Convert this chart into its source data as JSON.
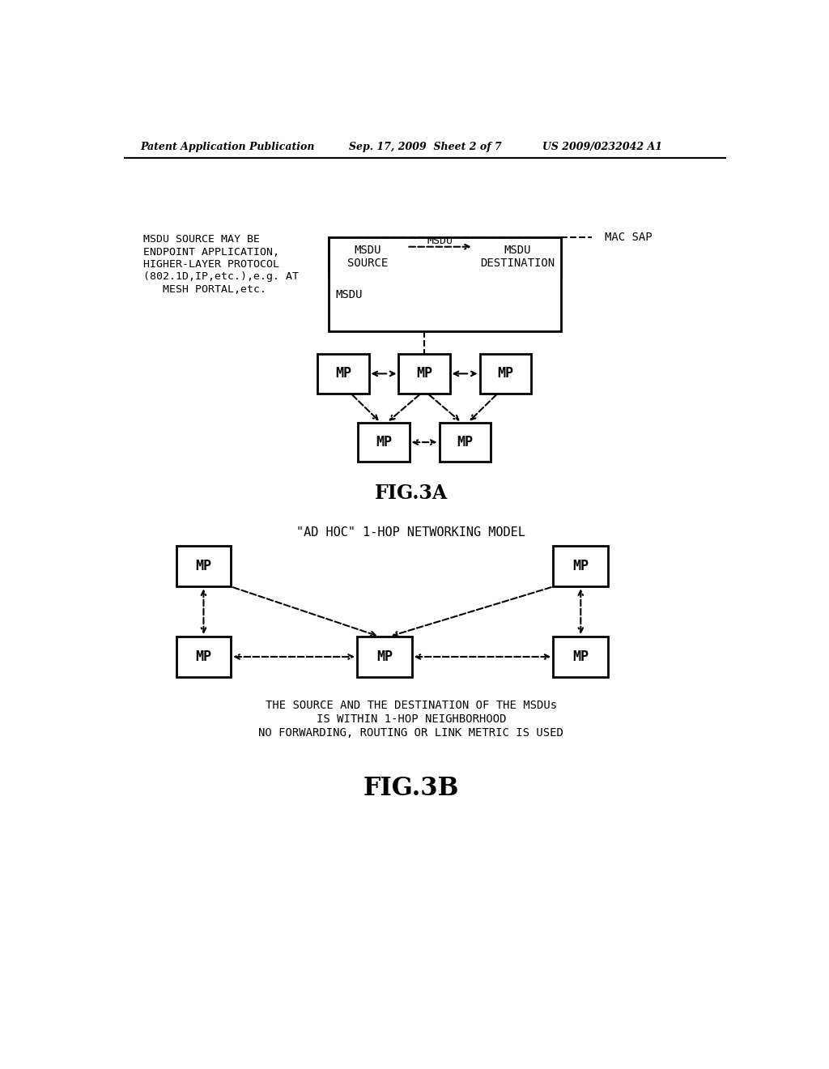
{
  "bg_color": "#ffffff",
  "header_left": "Patent Application Publication",
  "header_mid": "Sep. 17, 2009  Sheet 2 of 7",
  "header_right": "US 2009/0232042 A1",
  "fig3a_label": "FIG.3A",
  "fig3b_label": "FIG.3B",
  "fig3b_title": "\"AD HOC\" 1-HOP NETWORKING MODEL",
  "fig3b_caption1": "THE SOURCE AND THE DESTINATION OF THE MSDUs",
  "fig3b_caption2": "IS WITHIN 1-HOP NEIGHBORHOOD",
  "fig3b_caption3": "NO FORWARDING, ROUTING OR LINK METRIC IS USED",
  "annotation_lines": [
    "MSDU SOURCE MAY BE",
    "ENDPOINT APPLICATION,",
    "HIGHER-LAYER PROTOCOL",
    "(802.1D,IP,etc.),e.g. AT",
    "   MESH PORTAL,etc."
  ],
  "mac_sap_label": "MAC SAP"
}
